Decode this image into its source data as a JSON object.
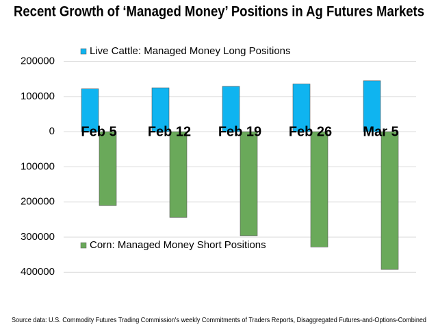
{
  "chart_data": {
    "type": "bar",
    "title": "Recent Growth of ‘Managed Money’ Positions in Ag Futures Markets",
    "source": "Source data: U.S. Commodity Futures Trading Commission's weekly Commitments of Traders Reports, Disaggregated Futures-and-Options-Combined",
    "categories": [
      "Feb 5",
      "Feb 12",
      "Feb 19",
      "Feb 26",
      "Mar 5"
    ],
    "series": [
      {
        "name": "Live Cattle: Managed Money Long Positions",
        "color": "#0fb4f0",
        "values": [
          122000,
          125000,
          129000,
          136000,
          145000
        ]
      },
      {
        "name": "Corn: Managed Money Short Positions",
        "color": "#6aa95a",
        "values": [
          -210000,
          -244000,
          -296000,
          -328000,
          -392000
        ]
      }
    ],
    "ylim": [
      -460000,
      250000
    ],
    "yticks": [
      200000,
      100000,
      0,
      {
        "value": -100000,
        "label": "100000"
      },
      {
        "value": -200000,
        "label": "200000"
      },
      {
        "value": -300000,
        "label": "300000"
      },
      {
        "value": -400000,
        "label": "400000"
      }
    ],
    "grid": true
  }
}
